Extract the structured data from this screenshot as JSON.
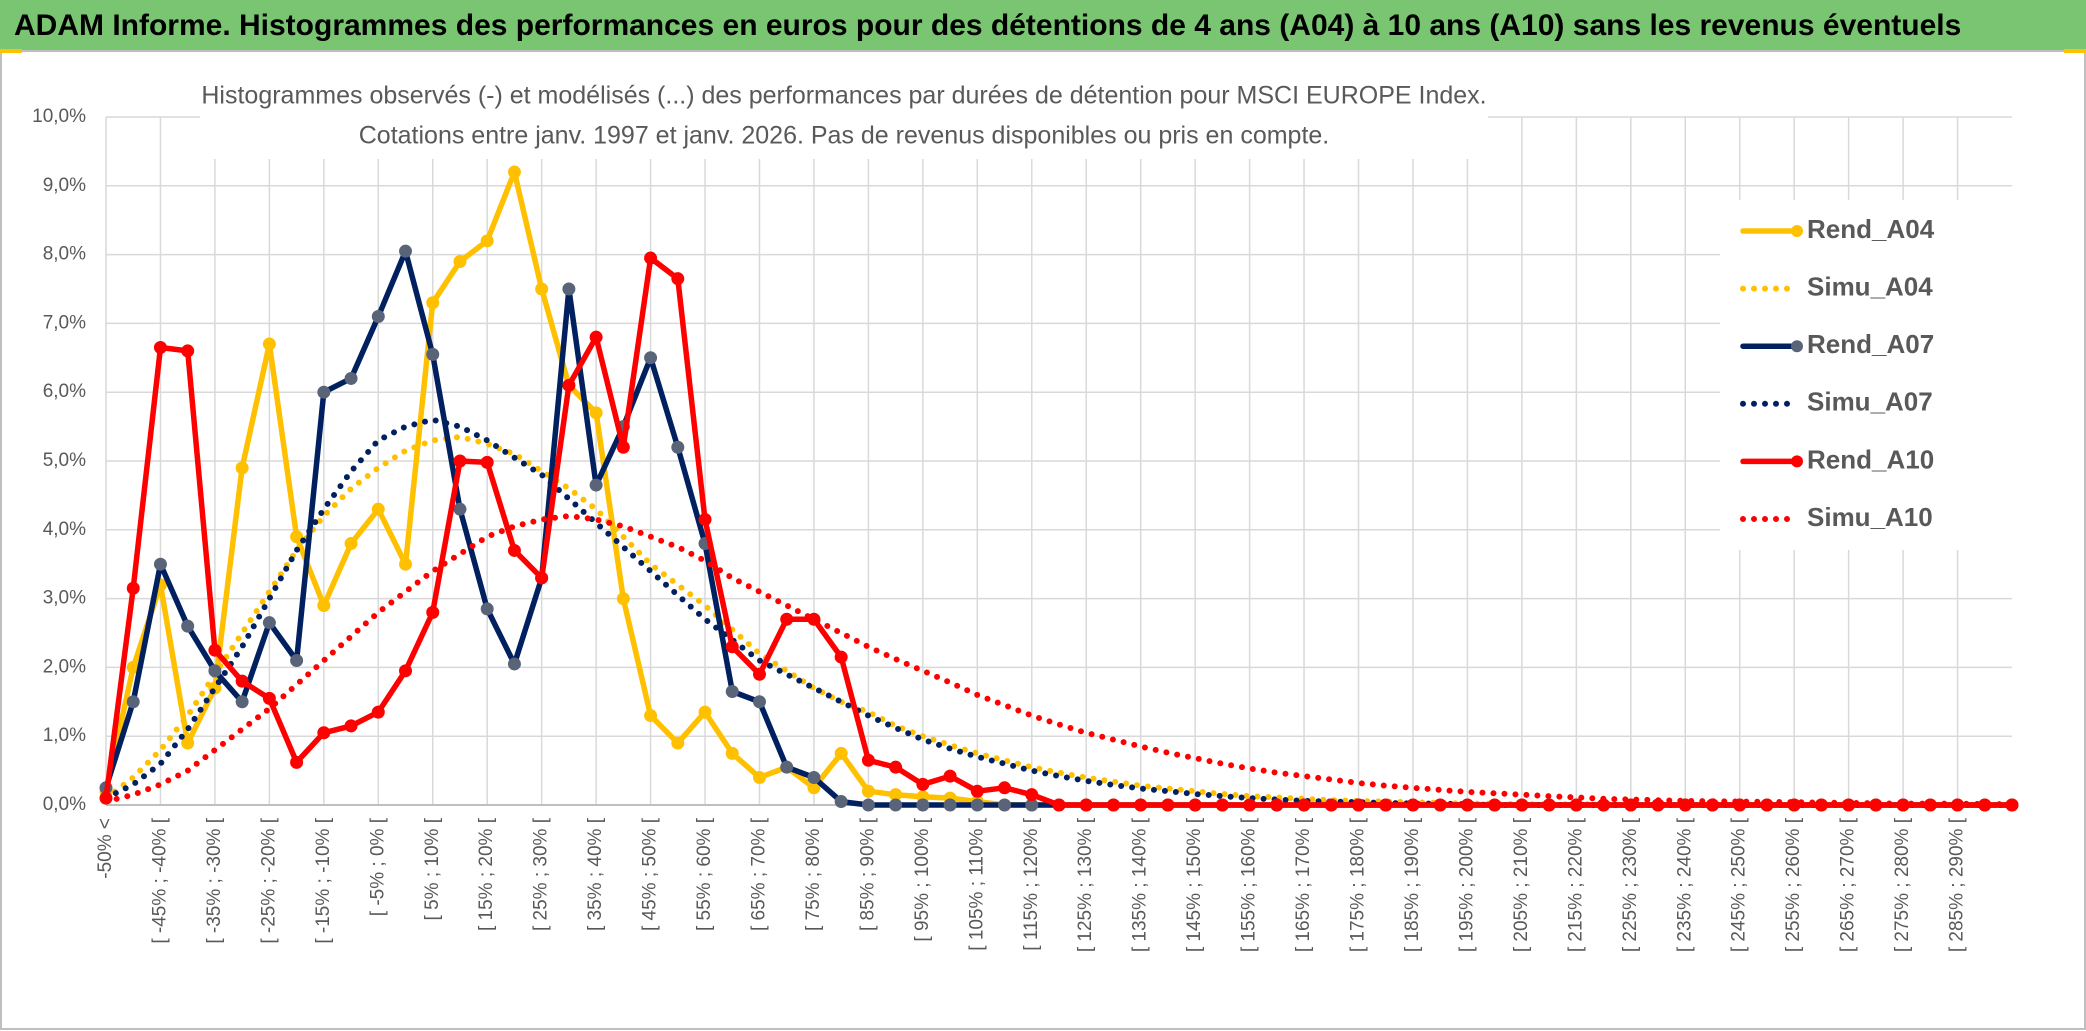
{
  "chart_data": {
    "type": "line",
    "title": "ADAM Informe. Histogrammes des performances en euros pour des détentions de 4 ans (A04) à 10 ans (A10) sans les revenus éventuels",
    "subtitle": [
      "Histogrammes observés (-) et modélisés (...) des performances par durées de détention pour MSCI EUROPE Index.",
      "Cotations entre janv. 1997 et janv. 2026. Pas de revenus disponibles ou pris en compte."
    ],
    "categories": [
      "-50% <",
      null,
      "[ -45% ; -40% [",
      null,
      "[ -35% ; -30% [",
      null,
      "[ -25% ; -20% [",
      null,
      "[ -15% ; -10% [",
      null,
      "[ -5% ; 0% [",
      null,
      "[ 5% ; 10% [",
      null,
      "[ 15% ; 20% [",
      null,
      "[ 25% ; 30% [",
      null,
      "[ 35% ; 40% [",
      null,
      "[ 45% ; 50% [",
      null,
      "[ 55% ; 60% [",
      null,
      "[ 65% ; 70% [",
      null,
      "[ 75% ; 80% [",
      null,
      "[ 85% ; 90% [",
      null,
      "[ 95% ; 100% [",
      null,
      "[ 105% ; 110% [",
      null,
      "[ 115% ; 120% [",
      null,
      "[ 125% ; 130% [",
      null,
      "[ 135% ; 140% [",
      null,
      "[ 145% ; 150% [",
      null,
      "[ 155% ; 160% [",
      null,
      "[ 165% ; 170% [",
      null,
      "[ 175% ; 180% [",
      null,
      "[ 185% ; 190% [",
      null,
      "[ 195% ; 200% [",
      null,
      "[ 205% ; 210% [",
      null,
      "[ 215% ; 220% [",
      null,
      "[ 225% ; 230% [",
      null,
      "[ 235% ; 240% [",
      null,
      "[ 245% ; 250% [",
      null,
      "[ 255% ; 260% [",
      null,
      "[ 265% ; 270% [",
      null,
      "[ 275% ; 280% [",
      null,
      "[ 285% ; 290% [",
      null,
      null
    ],
    "series": [
      {
        "name": "Rend_A04",
        "color": "#ffc000",
        "marker_color": "#ffc000",
        "style": "solid",
        "markers": true,
        "values": [
          0.2,
          2.0,
          3.2,
          0.9,
          1.7,
          4.9,
          6.7,
          3.9,
          2.9,
          3.8,
          4.3,
          3.5,
          7.3,
          7.9,
          8.2,
          9.2,
          7.5,
          6.1,
          5.7,
          3.0,
          1.3,
          0.9,
          1.35,
          0.75,
          0.4,
          0.55,
          0.25,
          0.75,
          0.2,
          0.15,
          0.12,
          0.1,
          0.05,
          0,
          0,
          0,
          0,
          0,
          0,
          0,
          0,
          0,
          0,
          0,
          0,
          0,
          0,
          0,
          0,
          0,
          0,
          0,
          0,
          0,
          0,
          0,
          0,
          0,
          0,
          0,
          0,
          0,
          0,
          0,
          0,
          0,
          0,
          0,
          0,
          0,
          0
        ]
      },
      {
        "name": "Simu_A04",
        "color": "#ffc000",
        "style": "dotted",
        "markers": false,
        "values": [
          0.1,
          0.4,
          0.8,
          1.3,
          1.9,
          2.5,
          3.1,
          3.7,
          4.2,
          4.6,
          4.9,
          5.15,
          5.3,
          5.35,
          5.25,
          5.1,
          4.85,
          4.6,
          4.3,
          3.9,
          3.5,
          3.2,
          2.9,
          2.55,
          2.2,
          1.95,
          1.7,
          1.5,
          1.35,
          1.15,
          1.0,
          0.87,
          0.75,
          0.65,
          0.55,
          0.47,
          0.4,
          0.34,
          0.28,
          0.24,
          0.2,
          0.16,
          0.13,
          0.11,
          0.09,
          0.07,
          0.06,
          0.05,
          0.04,
          0.03,
          0.02,
          0.02,
          0.01,
          0.01,
          0.01,
          0.01,
          0,
          0,
          0,
          0,
          0,
          0,
          0,
          0,
          0,
          0,
          0,
          0,
          0,
          0,
          0
        ]
      },
      {
        "name": "Rend_A07",
        "color": "#002060",
        "marker_color": "#5a6478",
        "style": "solid",
        "markers": true,
        "values": [
          0.25,
          1.5,
          3.5,
          2.6,
          1.95,
          1.5,
          2.65,
          2.1,
          6.0,
          6.2,
          7.1,
          8.05,
          6.55,
          4.3,
          2.85,
          2.05,
          3.3,
          7.5,
          4.65,
          5.5,
          6.5,
          5.2,
          3.8,
          1.65,
          1.5,
          0.55,
          0.4,
          0.05,
          0,
          0,
          0,
          0,
          0,
          0,
          0,
          0,
          0,
          0,
          0,
          0,
          0,
          0,
          0,
          0,
          0,
          0,
          0,
          0,
          0,
          0,
          0,
          0,
          0,
          0,
          0,
          0,
          0,
          0,
          0,
          0,
          0,
          0,
          0,
          0,
          0,
          0,
          0,
          0,
          0,
          0,
          0
        ]
      },
      {
        "name": "Simu_A07",
        "color": "#002060",
        "style": "dotted",
        "markers": false,
        "values": [
          0.1,
          0.3,
          0.6,
          1.1,
          1.7,
          2.3,
          3.0,
          3.7,
          4.3,
          4.85,
          5.3,
          5.5,
          5.6,
          5.5,
          5.3,
          5.05,
          4.8,
          4.45,
          4.1,
          3.75,
          3.4,
          3.05,
          2.7,
          2.4,
          2.1,
          1.9,
          1.7,
          1.5,
          1.3,
          1.12,
          0.95,
          0.82,
          0.7,
          0.6,
          0.5,
          0.42,
          0.35,
          0.29,
          0.24,
          0.2,
          0.16,
          0.13,
          0.1,
          0.08,
          0.06,
          0.05,
          0.04,
          0.03,
          0.02,
          0.02,
          0.01,
          0,
          0,
          0,
          0,
          0,
          0,
          0,
          0,
          0,
          0,
          0,
          0,
          0,
          0,
          0,
          0,
          0,
          0,
          0,
          0
        ]
      },
      {
        "name": "Rend_A10",
        "color": "#ff0000",
        "marker_color": "#ff0000",
        "style": "solid",
        "markers": true,
        "values": [
          0.1,
          3.15,
          6.65,
          6.6,
          2.25,
          1.8,
          1.55,
          0.62,
          1.05,
          1.15,
          1.35,
          1.95,
          2.8,
          5.0,
          4.98,
          3.7,
          3.3,
          6.1,
          6.8,
          5.2,
          7.95,
          7.65,
          4.15,
          2.3,
          1.9,
          2.7,
          2.7,
          2.15,
          0.65,
          0.55,
          0.3,
          0.42,
          0.2,
          0.25,
          0.15,
          0,
          0,
          0,
          0,
          0,
          0,
          0,
          0,
          0,
          0,
          0,
          0,
          0,
          0,
          0,
          0,
          0,
          0,
          0,
          0,
          0,
          0,
          0,
          0,
          0,
          0,
          0,
          0,
          0,
          0,
          0,
          0,
          0,
          0,
          0,
          0
        ]
      },
      {
        "name": "Simu_A10",
        "color": "#ff0000",
        "style": "dotted",
        "markers": false,
        "values": [
          0.05,
          0.15,
          0.3,
          0.5,
          0.8,
          1.1,
          1.4,
          1.75,
          2.1,
          2.45,
          2.8,
          3.1,
          3.4,
          3.65,
          3.9,
          4.05,
          4.15,
          4.2,
          4.15,
          4.05,
          3.9,
          3.75,
          3.55,
          3.3,
          3.1,
          2.9,
          2.7,
          2.5,
          2.3,
          2.12,
          1.95,
          1.78,
          1.6,
          1.45,
          1.3,
          1.17,
          1.05,
          0.95,
          0.85,
          0.76,
          0.68,
          0.6,
          0.53,
          0.47,
          0.42,
          0.37,
          0.32,
          0.28,
          0.25,
          0.22,
          0.19,
          0.17,
          0.15,
          0.13,
          0.11,
          0.09,
          0.08,
          0.07,
          0.06,
          0.055,
          0.05,
          0.045,
          0.04,
          0.035,
          0.03,
          0.025,
          0.02,
          0.02,
          0.02,
          0.015,
          0.01
        ]
      }
    ],
    "ylim": [
      0,
      10
    ],
    "yticks": [
      {
        "value": 0,
        "label": "0,0%"
      },
      {
        "value": 1,
        "label": "1,0%"
      },
      {
        "value": 2,
        "label": "2,0%"
      },
      {
        "value": 3,
        "label": "3,0%"
      },
      {
        "value": 4,
        "label": "4,0%"
      },
      {
        "value": 5,
        "label": "5,0%"
      },
      {
        "value": 6,
        "label": "6,0%"
      },
      {
        "value": 7,
        "label": "7,0%"
      },
      {
        "value": 8,
        "label": "8,0%"
      },
      {
        "value": 9,
        "label": "9,0%"
      },
      {
        "value": 10,
        "label": "10,0%"
      }
    ],
    "grid": true,
    "legend": "right"
  }
}
